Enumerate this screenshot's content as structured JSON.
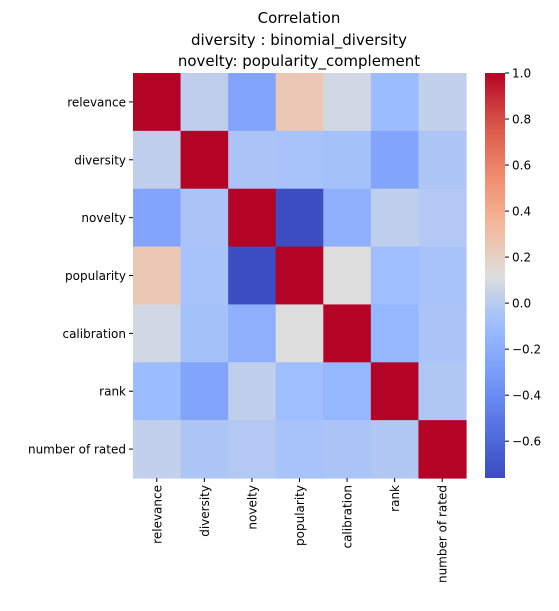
{
  "chart_data": {
    "type": "heatmap",
    "title_lines": [
      "Correlation",
      "diversity : binomial_diversity",
      "novelty: popularity_complement"
    ],
    "row_labels": [
      "relevance",
      "diversity",
      "novelty",
      "popularity",
      "calibration",
      "rank",
      "number of rated"
    ],
    "col_labels": [
      "relevance",
      "diversity",
      "novelty",
      "popularity",
      "calibration",
      "rank",
      "number of rated"
    ],
    "values": [
      [
        1.0,
        0.02,
        -0.25,
        0.25,
        0.08,
        -0.1,
        0.03
      ],
      [
        0.02,
        1.0,
        -0.05,
        -0.06,
        -0.07,
        -0.25,
        -0.04
      ],
      [
        -0.25,
        -0.05,
        1.0,
        -0.75,
        -0.18,
        0.02,
        -0.02
      ],
      [
        0.25,
        -0.06,
        -0.75,
        1.0,
        0.12,
        -0.09,
        -0.06
      ],
      [
        0.08,
        -0.07,
        -0.18,
        0.12,
        1.0,
        -0.14,
        -0.05
      ],
      [
        -0.1,
        -0.25,
        0.02,
        -0.09,
        -0.14,
        1.0,
        -0.03
      ],
      [
        0.03,
        -0.04,
        -0.02,
        -0.06,
        -0.05,
        -0.03,
        1.0
      ]
    ],
    "colormap": "coolwarm",
    "vmin": -0.76,
    "vmax": 1.0,
    "colorbar_ticks": [
      1.0,
      0.8,
      0.6,
      0.4,
      0.2,
      0.0,
      -0.2,
      -0.4,
      -0.6
    ],
    "colorbar_tick_labels": [
      "1.0",
      "0.8",
      "0.6",
      "0.4",
      "0.2",
      "0.0",
      "−0.2",
      "−0.4",
      "−0.6"
    ]
  }
}
